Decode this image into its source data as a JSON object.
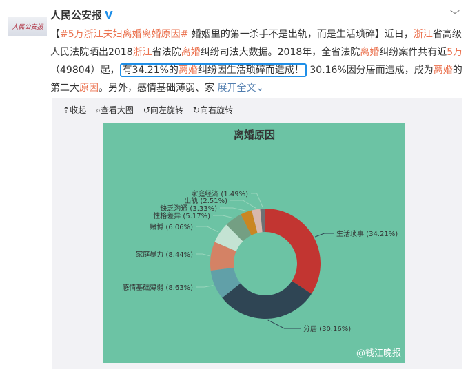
{
  "post": {
    "author": "人民公安报",
    "avatar_text": "人民公安报",
    "verified_icon": "V",
    "text_parts": [
      {
        "t": "【",
        "c": ""
      },
      {
        "t": "#5万浙江夫妇离婚离婚原因#",
        "c": "red"
      },
      {
        "t": " 婚姻里的第一杀手不是出轨，而是生活琐碎】近日，",
        "c": ""
      },
      {
        "t": "浙江",
        "c": "red"
      },
      {
        "t": "省高级人民法院晒出2018",
        "c": ""
      },
      {
        "t": "浙江",
        "c": "red"
      },
      {
        "t": "省法院",
        "c": ""
      },
      {
        "t": "离婚",
        "c": "red"
      },
      {
        "t": "纠纷司法大数据。2018年，全省法院",
        "c": ""
      },
      {
        "t": "离婚",
        "c": "red"
      },
      {
        "t": "纠纷案件共有近",
        "c": ""
      },
      {
        "t": "5万",
        "c": "red"
      },
      {
        "t": "（49804）起，",
        "c": ""
      }
    ],
    "highlight_parts": [
      {
        "t": "有34.21%的",
        "c": ""
      },
      {
        "t": "离婚",
        "c": "red"
      },
      {
        "t": "纠纷因生活琐碎而造成！",
        "c": ""
      }
    ],
    "tail_parts": [
      {
        "t": " 30.16%因分居而造成，成为",
        "c": ""
      },
      {
        "t": "离婚",
        "c": "red"
      },
      {
        "t": "的第二大",
        "c": ""
      },
      {
        "t": "原因",
        "c": "red"
      },
      {
        "t": "。另外，感情基础薄弱、家 ",
        "c": ""
      }
    ],
    "expand_label": "展开全文",
    "accent": "#eb7350"
  },
  "toolbar": {
    "collapse": "收起",
    "view_large": "查看大图",
    "rotate_left": "向左旋转",
    "rotate_right": "向右旋转"
  },
  "watermark": "@钱江晚报",
  "chart_data": {
    "type": "pie",
    "title": "离婚原因",
    "donut": true,
    "categories": [
      "生活琐事",
      "分居",
      "感情基础薄弱",
      "家庭暴力",
      "赌博",
      "性格差异",
      "缺乏沟通",
      "出轨",
      "家庭经济"
    ],
    "values": [
      34.21,
      30.16,
      8.63,
      8.44,
      6.06,
      5.17,
      3.33,
      2.51,
      1.49
    ],
    "labels": [
      "生活琐事 (34.21%)",
      "分居 (30.16%)",
      "感情基础薄弱 (8.63%)",
      "家庭暴力 (8.44%)",
      "赌博 (6.06%)",
      "性格差异 (5.17%)",
      "缺乏沟通 (3.33%)",
      "出轨 (2.51%)",
      "家庭经济 (1.49%)"
    ],
    "colors": [
      "#c23531",
      "#2f4554",
      "#61a0a8",
      "#d48265",
      "#c4e3d3",
      "#749f83",
      "#ca8622",
      "#d8b8ad",
      "#6e7074"
    ],
    "background": "#6cc3a4"
  }
}
